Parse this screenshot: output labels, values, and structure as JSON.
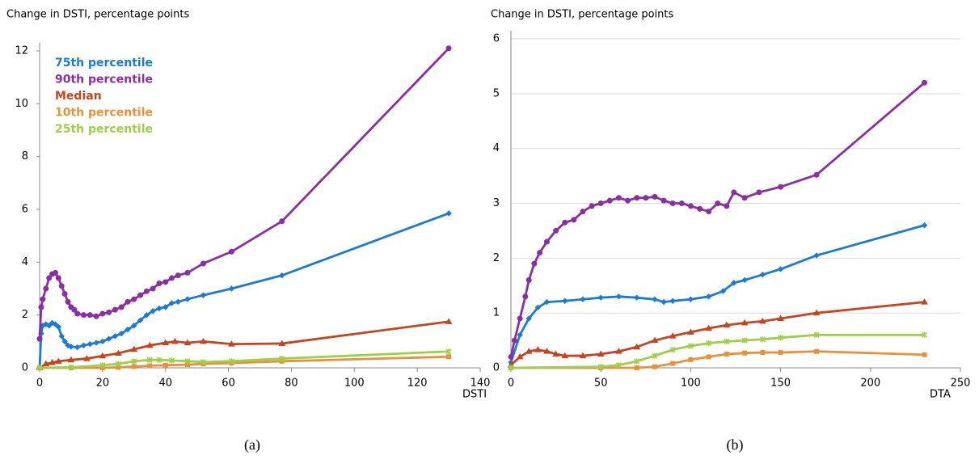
{
  "chart_data": [
    {
      "type": "line",
      "y_axis_title": "Change in DSTI, percentage points",
      "x_axis_title": "DSTI",
      "caption": "(a)",
      "xlim": [
        0,
        140
      ],
      "xticks": [
        0,
        20,
        40,
        60,
        80,
        100,
        120,
        140
      ],
      "ylim": [
        0,
        12
      ],
      "yticks": [
        0,
        2,
        4,
        6,
        8,
        10,
        12
      ],
      "grid": false,
      "legend": "upper left",
      "series": [
        {
          "name": "75th percentile",
          "color": "#1a7bd0",
          "marker": "diamond",
          "x": [
            0,
            0.5,
            1,
            2,
            3,
            4,
            5,
            6,
            7,
            8,
            9,
            10,
            12,
            14,
            16,
            18,
            20,
            22,
            24,
            26,
            28,
            30,
            32,
            34,
            36,
            38,
            40,
            42,
            44,
            47,
            52,
            61,
            77,
            130
          ],
          "values": [
            0,
            1.3,
            1.6,
            1.65,
            1.6,
            1.7,
            1.65,
            1.55,
            1.2,
            1.0,
            0.85,
            0.8,
            0.78,
            0.85,
            0.9,
            0.95,
            1.0,
            1.1,
            1.2,
            1.3,
            1.45,
            1.6,
            1.8,
            2.0,
            2.15,
            2.25,
            2.3,
            2.45,
            2.5,
            2.6,
            2.75,
            3.0,
            3.5,
            5.85
          ]
        },
        {
          "name": "90th percentile",
          "color": "#8a2ea3",
          "marker": "circle",
          "x": [
            0,
            0.5,
            1,
            2,
            3,
            4,
            5,
            6,
            7,
            8,
            9,
            10,
            11,
            12,
            14,
            16,
            18,
            20,
            22,
            24,
            26,
            28,
            30,
            32,
            34,
            36,
            38,
            40,
            42,
            44,
            47,
            52,
            61,
            77,
            130
          ],
          "values": [
            1.1,
            2.3,
            2.6,
            3.0,
            3.4,
            3.55,
            3.6,
            3.4,
            3.1,
            2.8,
            2.5,
            2.3,
            2.2,
            2.05,
            2.0,
            2.0,
            1.95,
            2.05,
            2.1,
            2.2,
            2.3,
            2.5,
            2.6,
            2.75,
            2.9,
            3.0,
            3.2,
            3.25,
            3.4,
            3.5,
            3.6,
            3.95,
            4.4,
            5.55,
            12.1
          ]
        },
        {
          "name": "Median",
          "color": "#c4451f",
          "marker": "triangle",
          "x": [
            0,
            2,
            4,
            6,
            10,
            15,
            20,
            25,
            30,
            35,
            40,
            43,
            47,
            52,
            61,
            77,
            130
          ],
          "values": [
            0,
            0.15,
            0.2,
            0.25,
            0.3,
            0.35,
            0.45,
            0.55,
            0.7,
            0.85,
            0.95,
            1.0,
            0.95,
            1.0,
            0.9,
            0.92,
            1.75
          ]
        },
        {
          "name": "10th percentile",
          "color": "#e8913a",
          "marker": "square",
          "x": [
            0,
            10,
            20,
            25,
            30,
            35,
            40,
            47,
            52,
            61,
            77,
            130
          ],
          "values": [
            0,
            0,
            0,
            0.02,
            0.05,
            0.08,
            0.1,
            0.12,
            0.15,
            0.18,
            0.25,
            0.42
          ]
        },
        {
          "name": "25th percentile",
          "color": "#9dcf48",
          "marker": "cross",
          "x": [
            0,
            10,
            20,
            25,
            30,
            35,
            38,
            42,
            47,
            52,
            61,
            77,
            130
          ],
          "values": [
            0,
            0.02,
            0.1,
            0.15,
            0.25,
            0.3,
            0.3,
            0.28,
            0.25,
            0.22,
            0.25,
            0.35,
            0.62
          ]
        }
      ]
    },
    {
      "type": "line",
      "y_axis_title": "Change in DSTI, percentage points",
      "x_axis_title": "DTA",
      "caption": "(b)",
      "xlim": [
        0,
        250
      ],
      "xticks": [
        0,
        50,
        100,
        150,
        200,
        250
      ],
      "ylim": [
        0,
        6
      ],
      "yticks": [
        0,
        1,
        2,
        3,
        4,
        5,
        6
      ],
      "grid": true,
      "series": [
        {
          "color": "#1a7bd0",
          "marker": "diamond",
          "x": [
            0,
            5,
            10,
            15,
            20,
            30,
            40,
            50,
            60,
            70,
            80,
            85,
            90,
            100,
            110,
            118,
            124,
            130,
            140,
            150,
            170,
            230
          ],
          "values": [
            0.1,
            0.6,
            0.9,
            1.1,
            1.2,
            1.22,
            1.25,
            1.28,
            1.3,
            1.28,
            1.25,
            1.2,
            1.22,
            1.25,
            1.3,
            1.4,
            1.55,
            1.6,
            1.7,
            1.8,
            2.05,
            2.6
          ]
        },
        {
          "color": "#8a2ea3",
          "marker": "circle",
          "x": [
            0,
            2,
            5,
            8,
            10,
            13,
            16,
            20,
            25,
            30,
            35,
            40,
            45,
            50,
            55,
            60,
            65,
            70,
            75,
            80,
            85,
            90,
            95,
            100,
            105,
            110,
            115,
            120,
            124,
            130,
            138,
            150,
            170,
            230
          ],
          "values": [
            0.2,
            0.5,
            0.9,
            1.3,
            1.6,
            1.9,
            2.1,
            2.3,
            2.5,
            2.65,
            2.7,
            2.85,
            2.95,
            3.0,
            3.05,
            3.1,
            3.05,
            3.1,
            3.1,
            3.12,
            3.05,
            3.0,
            3.0,
            2.95,
            2.9,
            2.85,
            3.0,
            2.95,
            3.2,
            3.1,
            3.2,
            3.3,
            3.52,
            5.2
          ]
        },
        {
          "color": "#c4451f",
          "marker": "triangle",
          "x": [
            0,
            5,
            10,
            15,
            20,
            25,
            30,
            40,
            50,
            60,
            70,
            80,
            90,
            100,
            110,
            120,
            130,
            140,
            150,
            170,
            230
          ],
          "values": [
            0.05,
            0.2,
            0.3,
            0.33,
            0.3,
            0.25,
            0.22,
            0.22,
            0.25,
            0.3,
            0.38,
            0.5,
            0.58,
            0.65,
            0.72,
            0.78,
            0.82,
            0.85,
            0.9,
            1.0,
            1.2
          ]
        },
        {
          "color": "#e8913a",
          "marker": "square",
          "x": [
            0,
            50,
            70,
            80,
            90,
            100,
            110,
            120,
            130,
            140,
            150,
            170,
            230
          ],
          "values": [
            0,
            0,
            0,
            0.02,
            0.08,
            0.15,
            0.2,
            0.25,
            0.27,
            0.28,
            0.28,
            0.3,
            0.24
          ]
        },
        {
          "color": "#9dcf48",
          "marker": "cross",
          "x": [
            0,
            50,
            60,
            70,
            80,
            90,
            100,
            110,
            120,
            130,
            140,
            150,
            170,
            230
          ],
          "values": [
            0,
            0.02,
            0.05,
            0.12,
            0.22,
            0.33,
            0.4,
            0.45,
            0.48,
            0.5,
            0.52,
            0.55,
            0.6,
            0.6
          ]
        }
      ]
    }
  ]
}
